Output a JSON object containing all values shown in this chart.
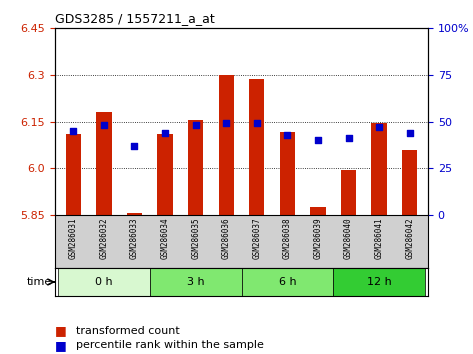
{
  "title": "GDS3285 / 1557211_a_at",
  "samples": [
    "GSM286031",
    "GSM286032",
    "GSM286033",
    "GSM286034",
    "GSM286035",
    "GSM286036",
    "GSM286037",
    "GSM286038",
    "GSM286039",
    "GSM286040",
    "GSM286041",
    "GSM286042"
  ],
  "transformed_counts": [
    6.11,
    6.18,
    5.855,
    6.11,
    6.155,
    6.3,
    6.285,
    6.115,
    5.875,
    5.995,
    6.145,
    6.06
  ],
  "percentile_ranks": [
    45,
    48,
    37,
    44,
    48,
    49,
    49,
    43,
    40,
    41,
    47,
    44
  ],
  "group_info": [
    {
      "label": "0 h",
      "start": 0,
      "end": 2,
      "color": "#d8f8d0"
    },
    {
      "label": "3 h",
      "start": 3,
      "end": 5,
      "color": "#80e870"
    },
    {
      "label": "6 h",
      "start": 6,
      "end": 8,
      "color": "#80e870"
    },
    {
      "label": "12 h",
      "start": 9,
      "end": 11,
      "color": "#33cc33"
    }
  ],
  "y_min": 5.85,
  "y_max": 6.45,
  "y_ticks": [
    5.85,
    6.0,
    6.15,
    6.3,
    6.45
  ],
  "y2_ticks": [
    0,
    25,
    50,
    75,
    100
  ],
  "bar_color": "#cc2200",
  "dot_color": "#0000cc",
  "bar_width": 0.5,
  "bar_baseline": 5.85,
  "sample_bg_color": "#d0d0d0",
  "fig_width": 4.73,
  "fig_height": 3.54,
  "fig_dpi": 100
}
